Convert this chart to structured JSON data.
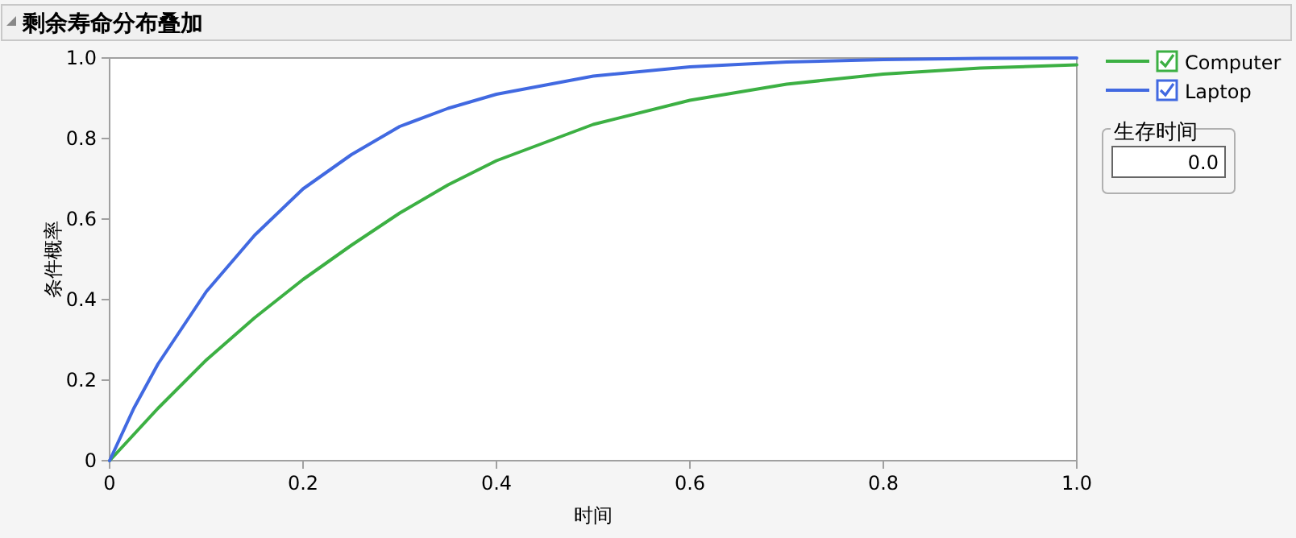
{
  "chart_data": {
    "type": "line",
    "title": "剩余寿命分布叠加",
    "xlabel": "时间",
    "ylabel": "条件概率",
    "xlim": [
      0,
      1
    ],
    "ylim": [
      0,
      1
    ],
    "xticks": [
      0,
      0.2,
      0.4,
      0.6,
      0.8,
      {
        "value": 1,
        "label": "1.0"
      }
    ],
    "yticks": [
      0,
      0.2,
      0.4,
      0.6,
      0.8,
      {
        "value": 1,
        "label": "1.0"
      }
    ],
    "legend": "top right",
    "marker": "none",
    "line_style": "solid",
    "annotations": [
      "生存时间",
      "0.0"
    ],
    "series": [
      {
        "name": "Computer",
        "color": "#3cb043",
        "x": [
          0,
          0.05,
          0.1,
          0.15,
          0.2,
          0.25,
          0.3,
          0.35,
          0.4,
          0.5,
          0.6,
          0.7,
          0.8,
          0.9,
          1.0
        ],
        "values": [
          0,
          0.13,
          0.25,
          0.355,
          0.45,
          0.535,
          0.615,
          0.685,
          0.745,
          0.835,
          0.895,
          0.935,
          0.96,
          0.975,
          0.983
        ]
      },
      {
        "name": "Laptop",
        "color": "#4169e1",
        "x": [
          0,
          0.025,
          0.05,
          0.1,
          0.15,
          0.2,
          0.25,
          0.3,
          0.35,
          0.4,
          0.5,
          0.6,
          0.7,
          0.8,
          0.9,
          1.0
        ],
        "values": [
          0,
          0.13,
          0.24,
          0.42,
          0.56,
          0.675,
          0.76,
          0.83,
          0.875,
          0.91,
          0.955,
          0.978,
          0.99,
          0.996,
          0.999,
          1.0
        ]
      }
    ]
  }
}
